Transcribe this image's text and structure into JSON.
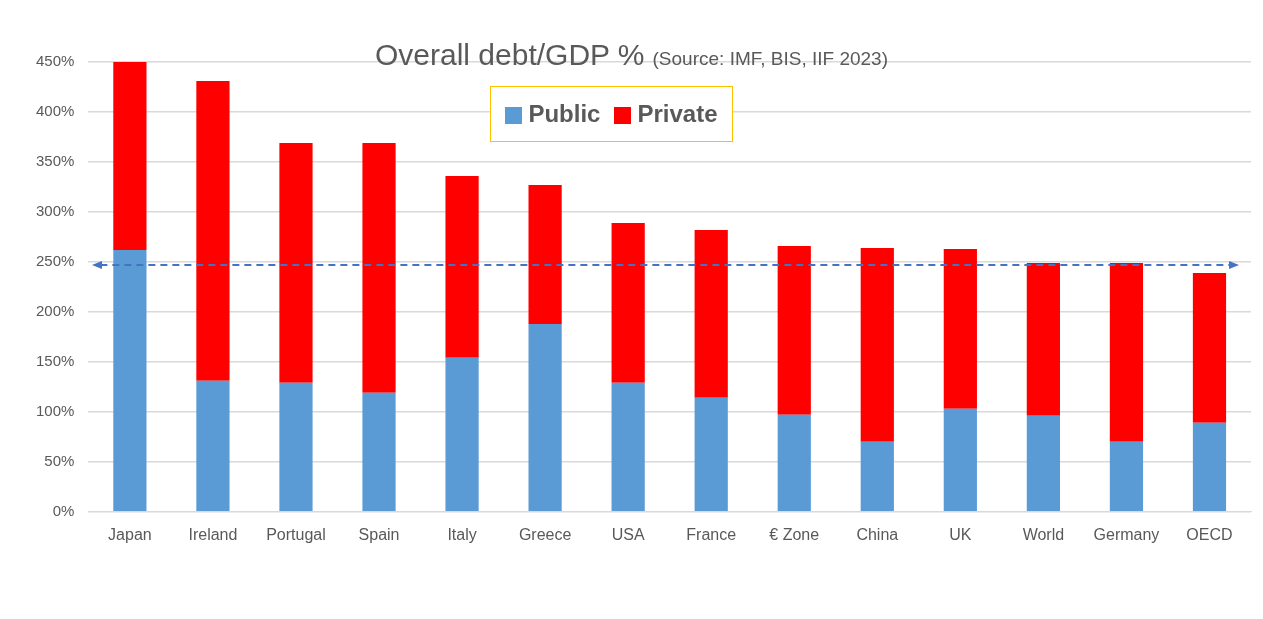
{
  "chart_data": {
    "type": "bar",
    "title": "Overall debt/GDP %",
    "subtitle": "(Source: IMF, BIS, IIF 2023)",
    "categories": [
      "Japan",
      "Ireland",
      "Portugal",
      "Spain",
      "Italy",
      "Greece",
      "USA",
      "France",
      "€ Zone",
      "China",
      "UK",
      "World",
      "Germany",
      "OECD"
    ],
    "series": [
      {
        "name": "Public",
        "color": "#5b9bd5",
        "values": [
          262,
          131,
          129,
          119,
          154,
          188,
          129,
          114,
          97,
          70,
          103,
          96,
          70,
          89
        ]
      },
      {
        "name": "Private",
        "color": "#ff0000",
        "values": [
          188,
          300,
          240,
          250,
          182,
          139,
          160,
          168,
          169,
          194,
          160,
          153,
          179,
          150
        ]
      }
    ],
    "stacked": true,
    "ylim": [
      0,
      450
    ],
    "yticks": [
      {
        "value": 0,
        "label": "0%"
      },
      {
        "value": 50,
        "label": "50%"
      },
      {
        "value": 100,
        "label": "100%"
      },
      {
        "value": 150,
        "label": "150%"
      },
      {
        "value": 200,
        "label": "200%"
      },
      {
        "value": 250,
        "label": "250%"
      },
      {
        "value": 300,
        "label": "300%"
      },
      {
        "value": 350,
        "label": "350%"
      },
      {
        "value": 400,
        "label": "400%"
      },
      {
        "value": 450,
        "label": "450%"
      }
    ],
    "ref_lines": [
      {
        "axis": "y",
        "value": 247,
        "color": "#4472c4",
        "line_style": "dashed"
      }
    ],
    "grid": "y",
    "legend": "top"
  }
}
